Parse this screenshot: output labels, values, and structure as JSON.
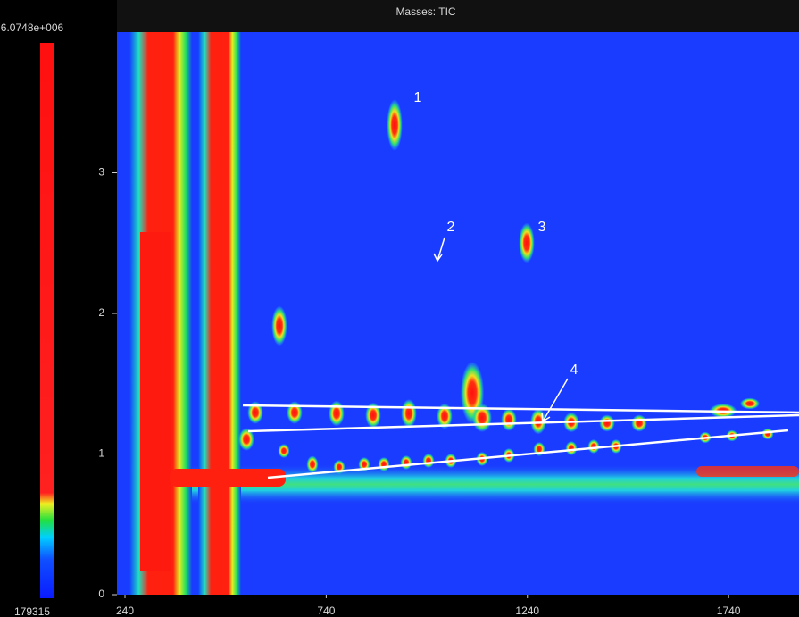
{
  "chart_data": {
    "type": "contour",
    "title": "Masses: TIC",
    "xlim": [
      220,
      1915
    ],
    "xticks": [
      240,
      740,
      1240,
      1740
    ],
    "ylim": [
      0,
      4
    ],
    "yticks": [
      0,
      1,
      2,
      3
    ],
    "colorbar_ticks": [
      179315,
      {
        "value": 6074800,
        "label": "6.0748e+006"
      }
    ],
    "annotations": [
      "1",
      "2",
      "3",
      "4"
    ]
  }
}
